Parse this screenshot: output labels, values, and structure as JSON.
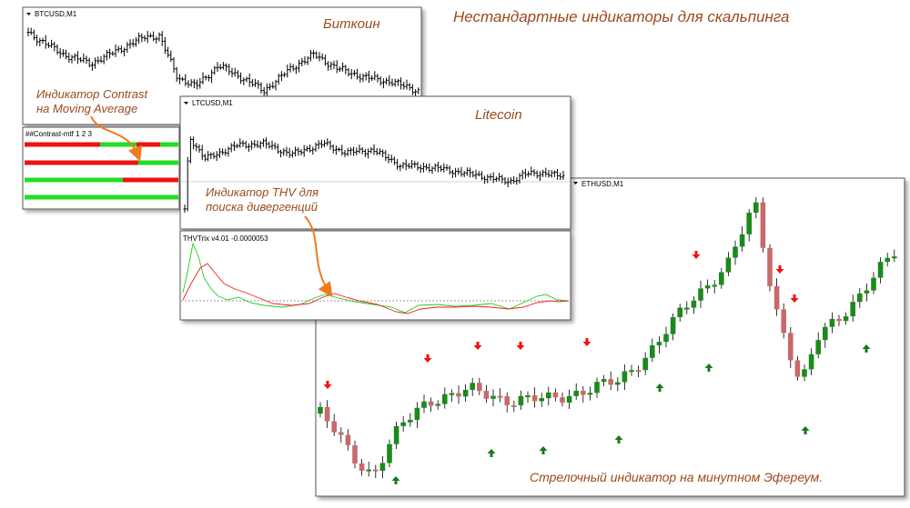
{
  "title": "Нестандартные индикаторы для скальпинга",
  "btc": {
    "symbol": "BTCUSD,M1",
    "caption": "Биткоин"
  },
  "contrast": {
    "label": "##Contrast-mtf 1 2 3"
  },
  "ltc": {
    "symbol": "LTCUSD,M1",
    "caption": "Litecoin"
  },
  "thv": {
    "label": "THVTrix v4.01 -0.0000053"
  },
  "eth": {
    "symbol": "ETHUSD,M1",
    "caption": "Стрелочный индикатор на минутном Эфереум."
  },
  "annotations": [
    {
      "lines": [
        "Индикатор Contrast",
        "на Moving Average"
      ]
    },
    {
      "lines": [
        "Индикатор THV для",
        "поиска дивергенций"
      ]
    }
  ]
}
